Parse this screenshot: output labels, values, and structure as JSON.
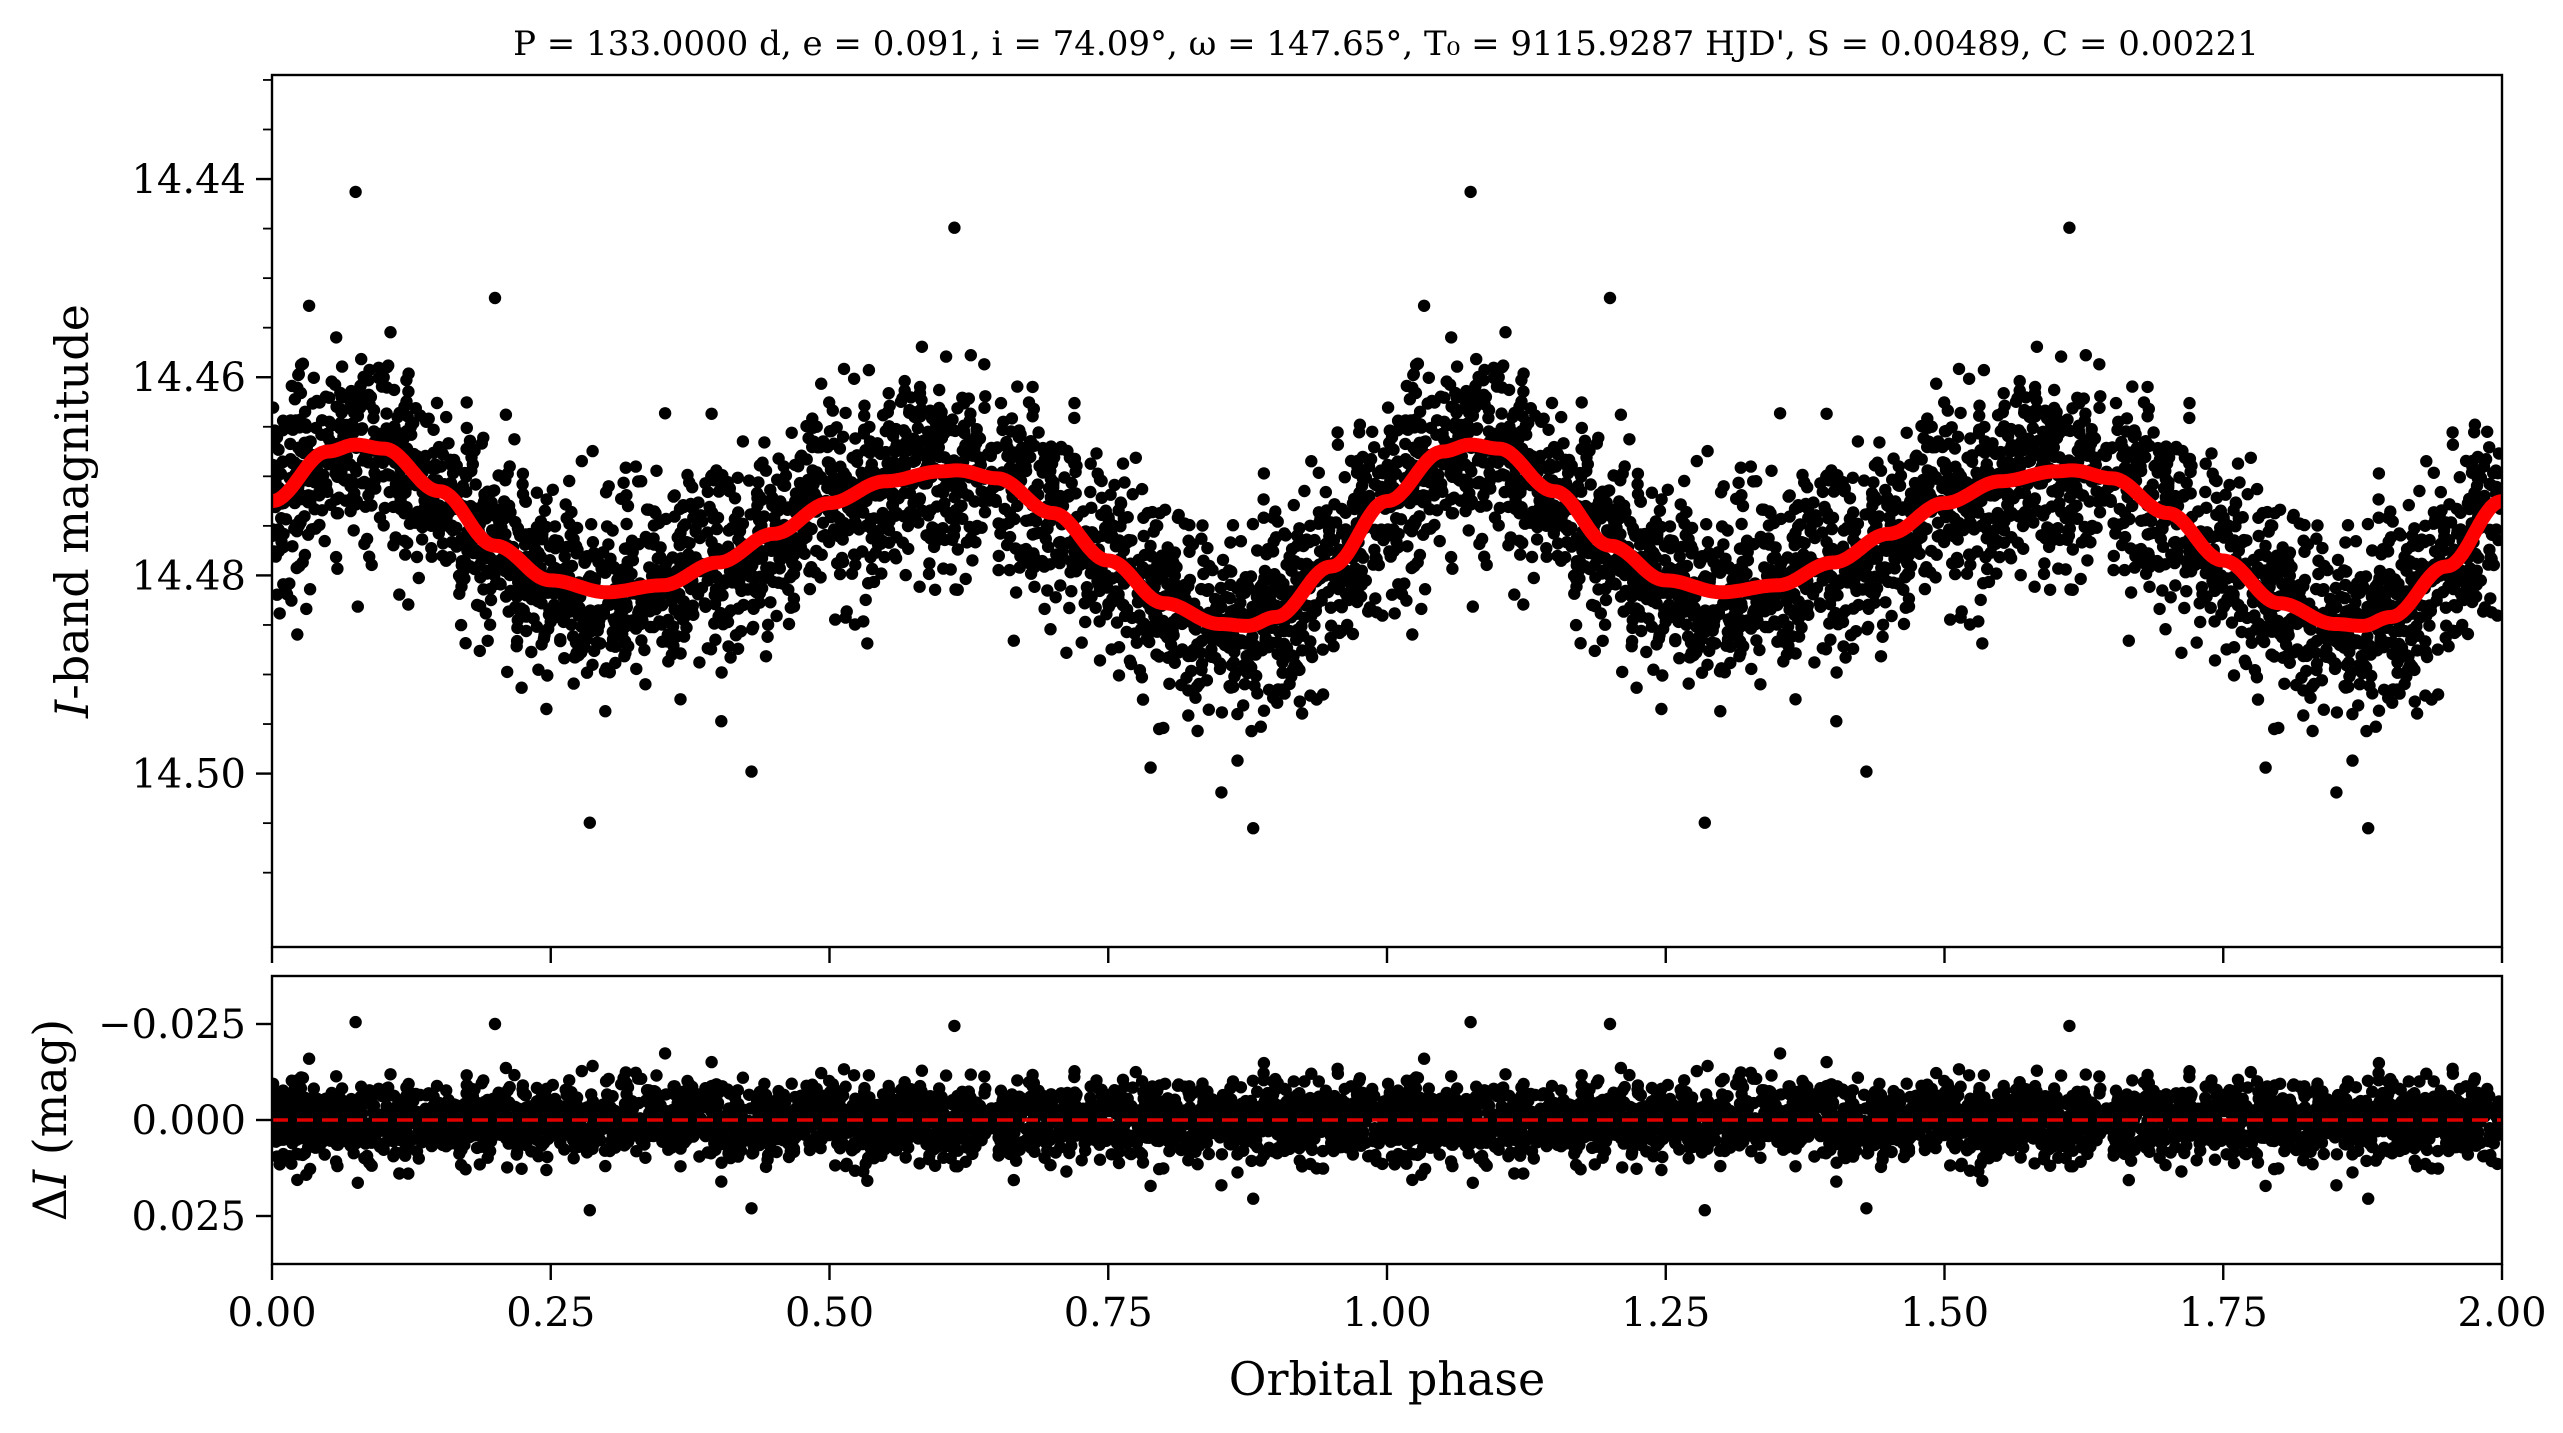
{
  "chart_data": [
    {
      "panel": "top",
      "type": "scatter",
      "title": "P = 133.0000 d, e = 0.091, i = 74.09°, ω = 147.65°, T₀ = 9115.9287 HJD', S = 0.00489, C = 0.00221",
      "xlabel": "",
      "ylabel": "I-band magnitude",
      "xlim": [
        0.0,
        2.0
      ],
      "ylim": [
        14.5175,
        14.4295
      ],
      "y_inverted": true,
      "yticks": [
        "14.44",
        "14.46",
        "14.48",
        "14.50"
      ],
      "ytick_values": [
        14.44,
        14.46,
        14.48,
        14.5
      ],
      "x_tick_labels_shown": false,
      "grid": false,
      "legend": "none",
      "colors": {
        "points": "#000000",
        "model": "#ff0000"
      },
      "series": [
        {
          "kind": "points",
          "description": "phase-folded photometry, plotted twice over phase 0–2",
          "envelope": {
            "typical_scatter_mag": 0.006,
            "outliers_mag_range": [
              14.441,
              14.507
            ]
          }
        },
        {
          "kind": "model",
          "phase": [
            0.0,
            0.05,
            0.075,
            0.1,
            0.15,
            0.2,
            0.25,
            0.3,
            0.35,
            0.4,
            0.45,
            0.5,
            0.55,
            0.6,
            0.615,
            0.65,
            0.7,
            0.75,
            0.8,
            0.85,
            0.875,
            0.9,
            0.95,
            1.0
          ],
          "mag": [
            14.4725,
            14.4675,
            14.4668,
            14.4672,
            14.4715,
            14.477,
            14.4805,
            14.4817,
            14.481,
            14.4787,
            14.4758,
            14.4727,
            14.4705,
            14.4695,
            14.4694,
            14.4702,
            14.4737,
            14.4785,
            14.4828,
            14.4849,
            14.4851,
            14.4842,
            14.4791,
            14.4725
          ]
        }
      ]
    },
    {
      "panel": "bottom",
      "type": "scatter",
      "title": "",
      "xlabel": "Orbital phase",
      "ylabel": "ΔI (mag)",
      "xlim": [
        0.0,
        2.0
      ],
      "ylim": [
        0.0375,
        -0.0375
      ],
      "y_inverted": true,
      "xticks": [
        "0.00",
        "0.25",
        "0.50",
        "0.75",
        "1.00",
        "1.25",
        "1.50",
        "1.75",
        "2.00"
      ],
      "xtick_values": [
        0.0,
        0.25,
        0.5,
        0.75,
        1.0,
        1.25,
        1.5,
        1.75,
        2.0
      ],
      "yticks": [
        "−0.025",
        "0.000",
        "0.025"
      ],
      "ytick_values": [
        -0.025,
        0.0,
        0.025
      ],
      "grid": false,
      "legend": "none",
      "colors": {
        "points": "#000000",
        "zero_line": "#e00000"
      },
      "series": [
        {
          "kind": "residuals",
          "description": "residuals of photometry minus model",
          "envelope": {
            "typical_scatter_mag": 0.006,
            "outliers_mag_range": [
              -0.026,
              0.025
            ]
          }
        },
        {
          "kind": "reference_line",
          "y": 0.0,
          "style": "dashed"
        }
      ]
    }
  ]
}
